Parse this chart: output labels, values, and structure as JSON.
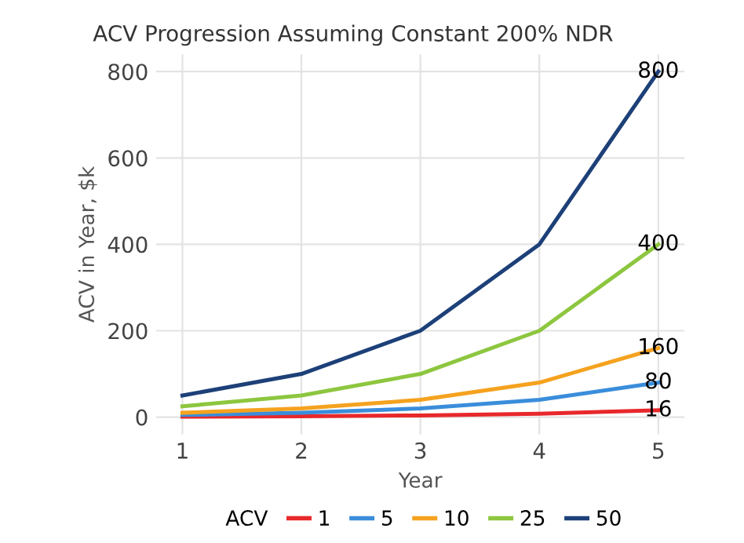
{
  "chart_data": {
    "type": "line",
    "title": "ACV Progression Assuming Constant 200% NDR",
    "xlabel": "Year",
    "ylabel": "ACV in Year, $k",
    "legend_title": "ACV",
    "x": [
      1,
      2,
      3,
      4,
      5
    ],
    "xlim": [
      0.78,
      5.22
    ],
    "xticks": [
      1,
      2,
      3,
      4,
      5
    ],
    "ylim": [
      -40,
      840
    ],
    "yticks": [
      0,
      200,
      400,
      600,
      800
    ],
    "series": [
      {
        "name": "1",
        "color": "#e8282b",
        "values": [
          1,
          2,
          4,
          8,
          16
        ],
        "value_labels": [
          null,
          null,
          null,
          null,
          "16"
        ]
      },
      {
        "name": "5",
        "color": "#3a8ddb",
        "values": [
          5,
          10,
          20,
          40,
          80
        ],
        "value_labels": [
          null,
          null,
          null,
          null,
          "80"
        ]
      },
      {
        "name": "10",
        "color": "#f5a21f",
        "values": [
          10,
          20,
          40,
          80,
          160
        ],
        "value_labels": [
          null,
          null,
          null,
          null,
          "160"
        ]
      },
      {
        "name": "25",
        "color": "#8dc63f",
        "values": [
          25,
          50,
          100,
          200,
          400
        ],
        "value_labels": [
          null,
          null,
          null,
          null,
          "400"
        ]
      },
      {
        "name": "50",
        "color": "#1d4078",
        "values": [
          50,
          100,
          200,
          400,
          800
        ],
        "value_labels": [
          null,
          null,
          null,
          null,
          "800"
        ]
      }
    ],
    "grid": true,
    "legend": "bottom",
    "marker": "none",
    "line_style": "solid"
  }
}
